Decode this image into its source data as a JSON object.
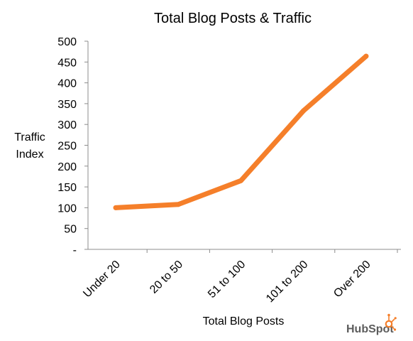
{
  "chart_data": {
    "type": "line",
    "title": "Total Blog Posts & Traffic",
    "xlabel": "Total Blog Posts",
    "ylabel_lines": [
      "Traffic",
      "Index"
    ],
    "categories": [
      "Under 20",
      "20 to 50",
      "51 to 100",
      "101 to 200",
      "Over 200"
    ],
    "series": [
      {
        "values": [
          100,
          108,
          165,
          333,
          464
        ]
      }
    ],
    "yticks": [
      "-",
      "50",
      "100",
      "150",
      "200",
      "250",
      "300",
      "350",
      "400",
      "450",
      "500"
    ],
    "ylim": [
      0,
      500
    ],
    "grid": false,
    "legend": "none",
    "line_color": "#f57f2a"
  },
  "branding": {
    "logo_text": "HubSpot"
  }
}
